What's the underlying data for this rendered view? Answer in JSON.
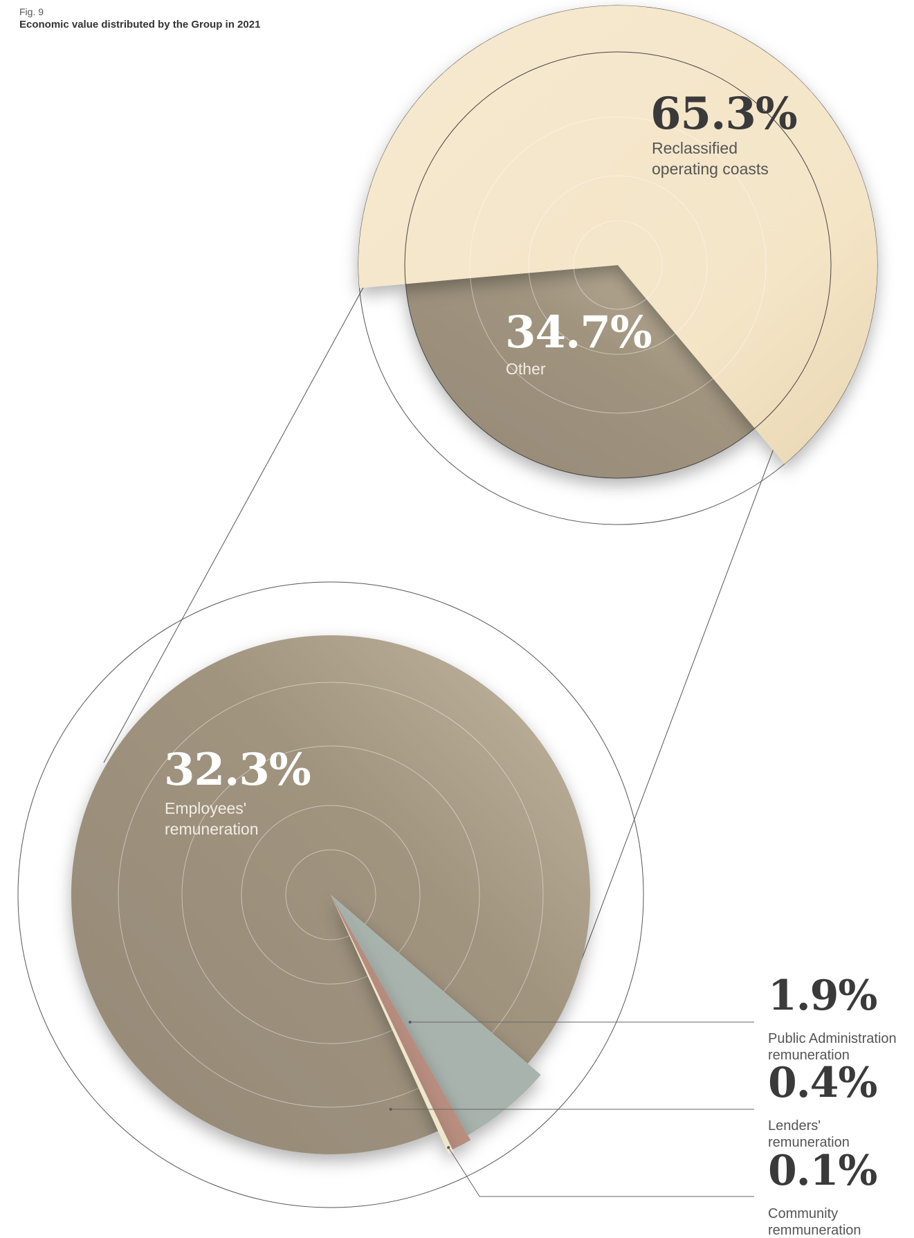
{
  "figure": {
    "label": "Fig. 9",
    "title": "Economic value distributed by the Group in 2021"
  },
  "colors": {
    "cream": "#f5e7cc",
    "taupe": "#9c8f7b",
    "slate": "#a9b3ad",
    "rose": "#b88e80",
    "ivory": "#eee7cc",
    "text_dark": "#3a3a3a",
    "text_white": "#ffffff"
  },
  "chart_data": [
    {
      "type": "pie",
      "categories": [
        "Reclassified operating coasts",
        "Other"
      ],
      "values": [
        65.3,
        34.7
      ],
      "value_labels": [
        "65.3%",
        "34.7%"
      ],
      "label_lines": [
        [
          "Reclassified",
          "operating coasts"
        ],
        [
          "Other"
        ]
      ]
    },
    {
      "type": "pie",
      "categories": [
        "Employees' remuneration",
        "Public Administration remuneration",
        "Lenders' remuneration",
        "Community remmuneration"
      ],
      "values": [
        32.3,
        1.9,
        0.4,
        0.1
      ],
      "value_labels": [
        "32.3%",
        "1.9%",
        "0.4%",
        "0.1%"
      ],
      "label_lines": [
        [
          "Employees'",
          "remuneration"
        ],
        [
          "Public Administration",
          "remuneration"
        ],
        [
          "Lenders'",
          "remuneration"
        ],
        [
          "Community",
          "remmuneration"
        ]
      ]
    }
  ]
}
